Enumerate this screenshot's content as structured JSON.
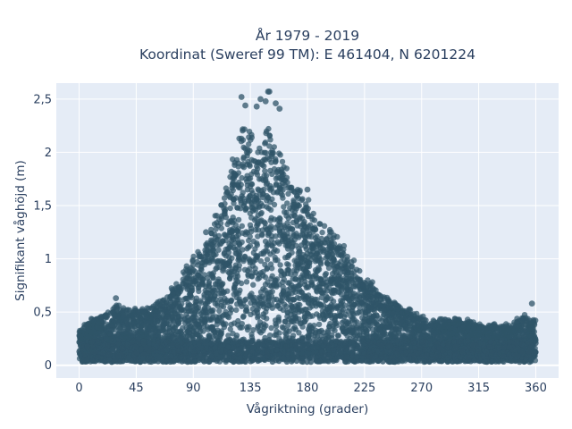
{
  "chart_data": {
    "type": "scatter",
    "title": [
      "År 1979 - 2019",
      "Koordinat (Sweref 99 TM): E 461404, N 6201224"
    ],
    "xlabel": "Vågriktning (grader)",
    "ylabel": "Signifikant våghöjd (m)",
    "xlim": [
      -18,
      378
    ],
    "ylim": [
      -0.12,
      2.65
    ],
    "x_ticks": [
      0,
      45,
      90,
      135,
      180,
      225,
      270,
      315,
      360
    ],
    "y_ticks": [
      0,
      0.5,
      1,
      1.5,
      2,
      2.5
    ],
    "y_tick_labels": [
      "0",
      "0,5",
      "1",
      "1,5",
      "2",
      "2,5"
    ],
    "grid": true,
    "marker_color": "#2f5468",
    "envelope": {
      "direction": [
        0,
        10,
        20,
        30,
        40,
        50,
        60,
        70,
        80,
        90,
        100,
        110,
        120,
        125,
        130,
        135,
        140,
        145,
        150,
        155,
        160,
        170,
        180,
        190,
        200,
        210,
        220,
        230,
        240,
        250,
        260,
        270,
        280,
        290,
        300,
        310,
        320,
        330,
        340,
        350,
        360
      ],
      "max_height": [
        0.35,
        0.45,
        0.5,
        0.58,
        0.55,
        0.55,
        0.6,
        0.7,
        0.85,
        1.05,
        1.22,
        1.5,
        1.9,
        2.2,
        2.45,
        2.35,
        2.2,
        2.15,
        2.4,
        2.2,
        2.05,
        1.75,
        1.6,
        1.4,
        1.3,
        1.15,
        0.95,
        0.8,
        0.7,
        0.62,
        0.55,
        0.48,
        0.45,
        0.45,
        0.45,
        0.42,
        0.4,
        0.4,
        0.4,
        0.48,
        0.45
      ],
      "min_height": 0.03
    },
    "outliers": [
      {
        "x": 128,
        "y": 2.52
      },
      {
        "x": 131,
        "y": 2.44
      },
      {
        "x": 140,
        "y": 2.43
      },
      {
        "x": 143,
        "y": 2.5
      },
      {
        "x": 147,
        "y": 2.48
      },
      {
        "x": 149,
        "y": 2.57
      },
      {
        "x": 150,
        "y": 2.57
      },
      {
        "x": 155,
        "y": 2.46
      },
      {
        "x": 158,
        "y": 2.41
      },
      {
        "x": 29,
        "y": 0.63
      },
      {
        "x": 357,
        "y": 0.58
      },
      {
        "x": 100,
        "y": 1.25
      },
      {
        "x": 180,
        "y": 1.65
      }
    ]
  }
}
